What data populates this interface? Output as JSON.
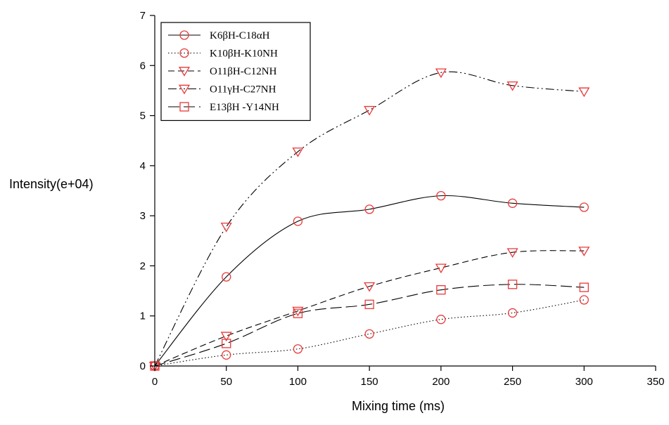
{
  "chart_data": {
    "type": "line",
    "xlabel": "Mixing time (ms)",
    "ylabel": "Intensity(e+04)",
    "xlim": [
      0,
      350
    ],
    "ylim": [
      0,
      7
    ],
    "x_ticks": [
      0,
      50,
      100,
      150,
      200,
      250,
      300,
      350
    ],
    "y_ticks": [
      0,
      1,
      2,
      3,
      4,
      5,
      6,
      7
    ],
    "x_tick_labels": [
      "0",
      "50",
      "100",
      "150",
      "200",
      "250",
      "300",
      "350"
    ],
    "y_tick_labels": [
      "0",
      "1",
      "2",
      "3",
      "4",
      "5",
      "6",
      "7"
    ],
    "grid": false,
    "legend_position": "top-left",
    "x": [
      0,
      50,
      100,
      150,
      200,
      250,
      300
    ],
    "series": [
      {
        "name": "K6βH-C18αH",
        "values": [
          0,
          1.78,
          2.89,
          3.13,
          3.4,
          3.25,
          3.17
        ],
        "marker": "circle",
        "line_style": "solid"
      },
      {
        "name": "K10βH-K10NH",
        "values": [
          0,
          0.22,
          0.34,
          0.64,
          0.93,
          1.06,
          1.32
        ],
        "marker": "circle",
        "line_style": "dotted"
      },
      {
        "name": "O11βH-C12NH",
        "values": [
          0,
          0.6,
          1.1,
          1.59,
          1.96,
          2.27,
          2.3
        ],
        "marker": "triangle-down",
        "line_style": "dashed"
      },
      {
        "name": "O11γH-C27NH",
        "values": [
          0,
          2.78,
          4.28,
          5.11,
          5.86,
          5.6,
          5.48
        ],
        "marker": "triangle-down",
        "line_style": "dash-dot-dot"
      },
      {
        "name": "E13βH -Y14NH",
        "values": [
          0,
          0.45,
          1.05,
          1.23,
          1.52,
          1.63,
          1.57
        ],
        "marker": "square",
        "line_style": "long-dash"
      }
    ],
    "colors": {
      "marker": "#e8393a",
      "line": "#000000",
      "axis": "#000000"
    }
  }
}
